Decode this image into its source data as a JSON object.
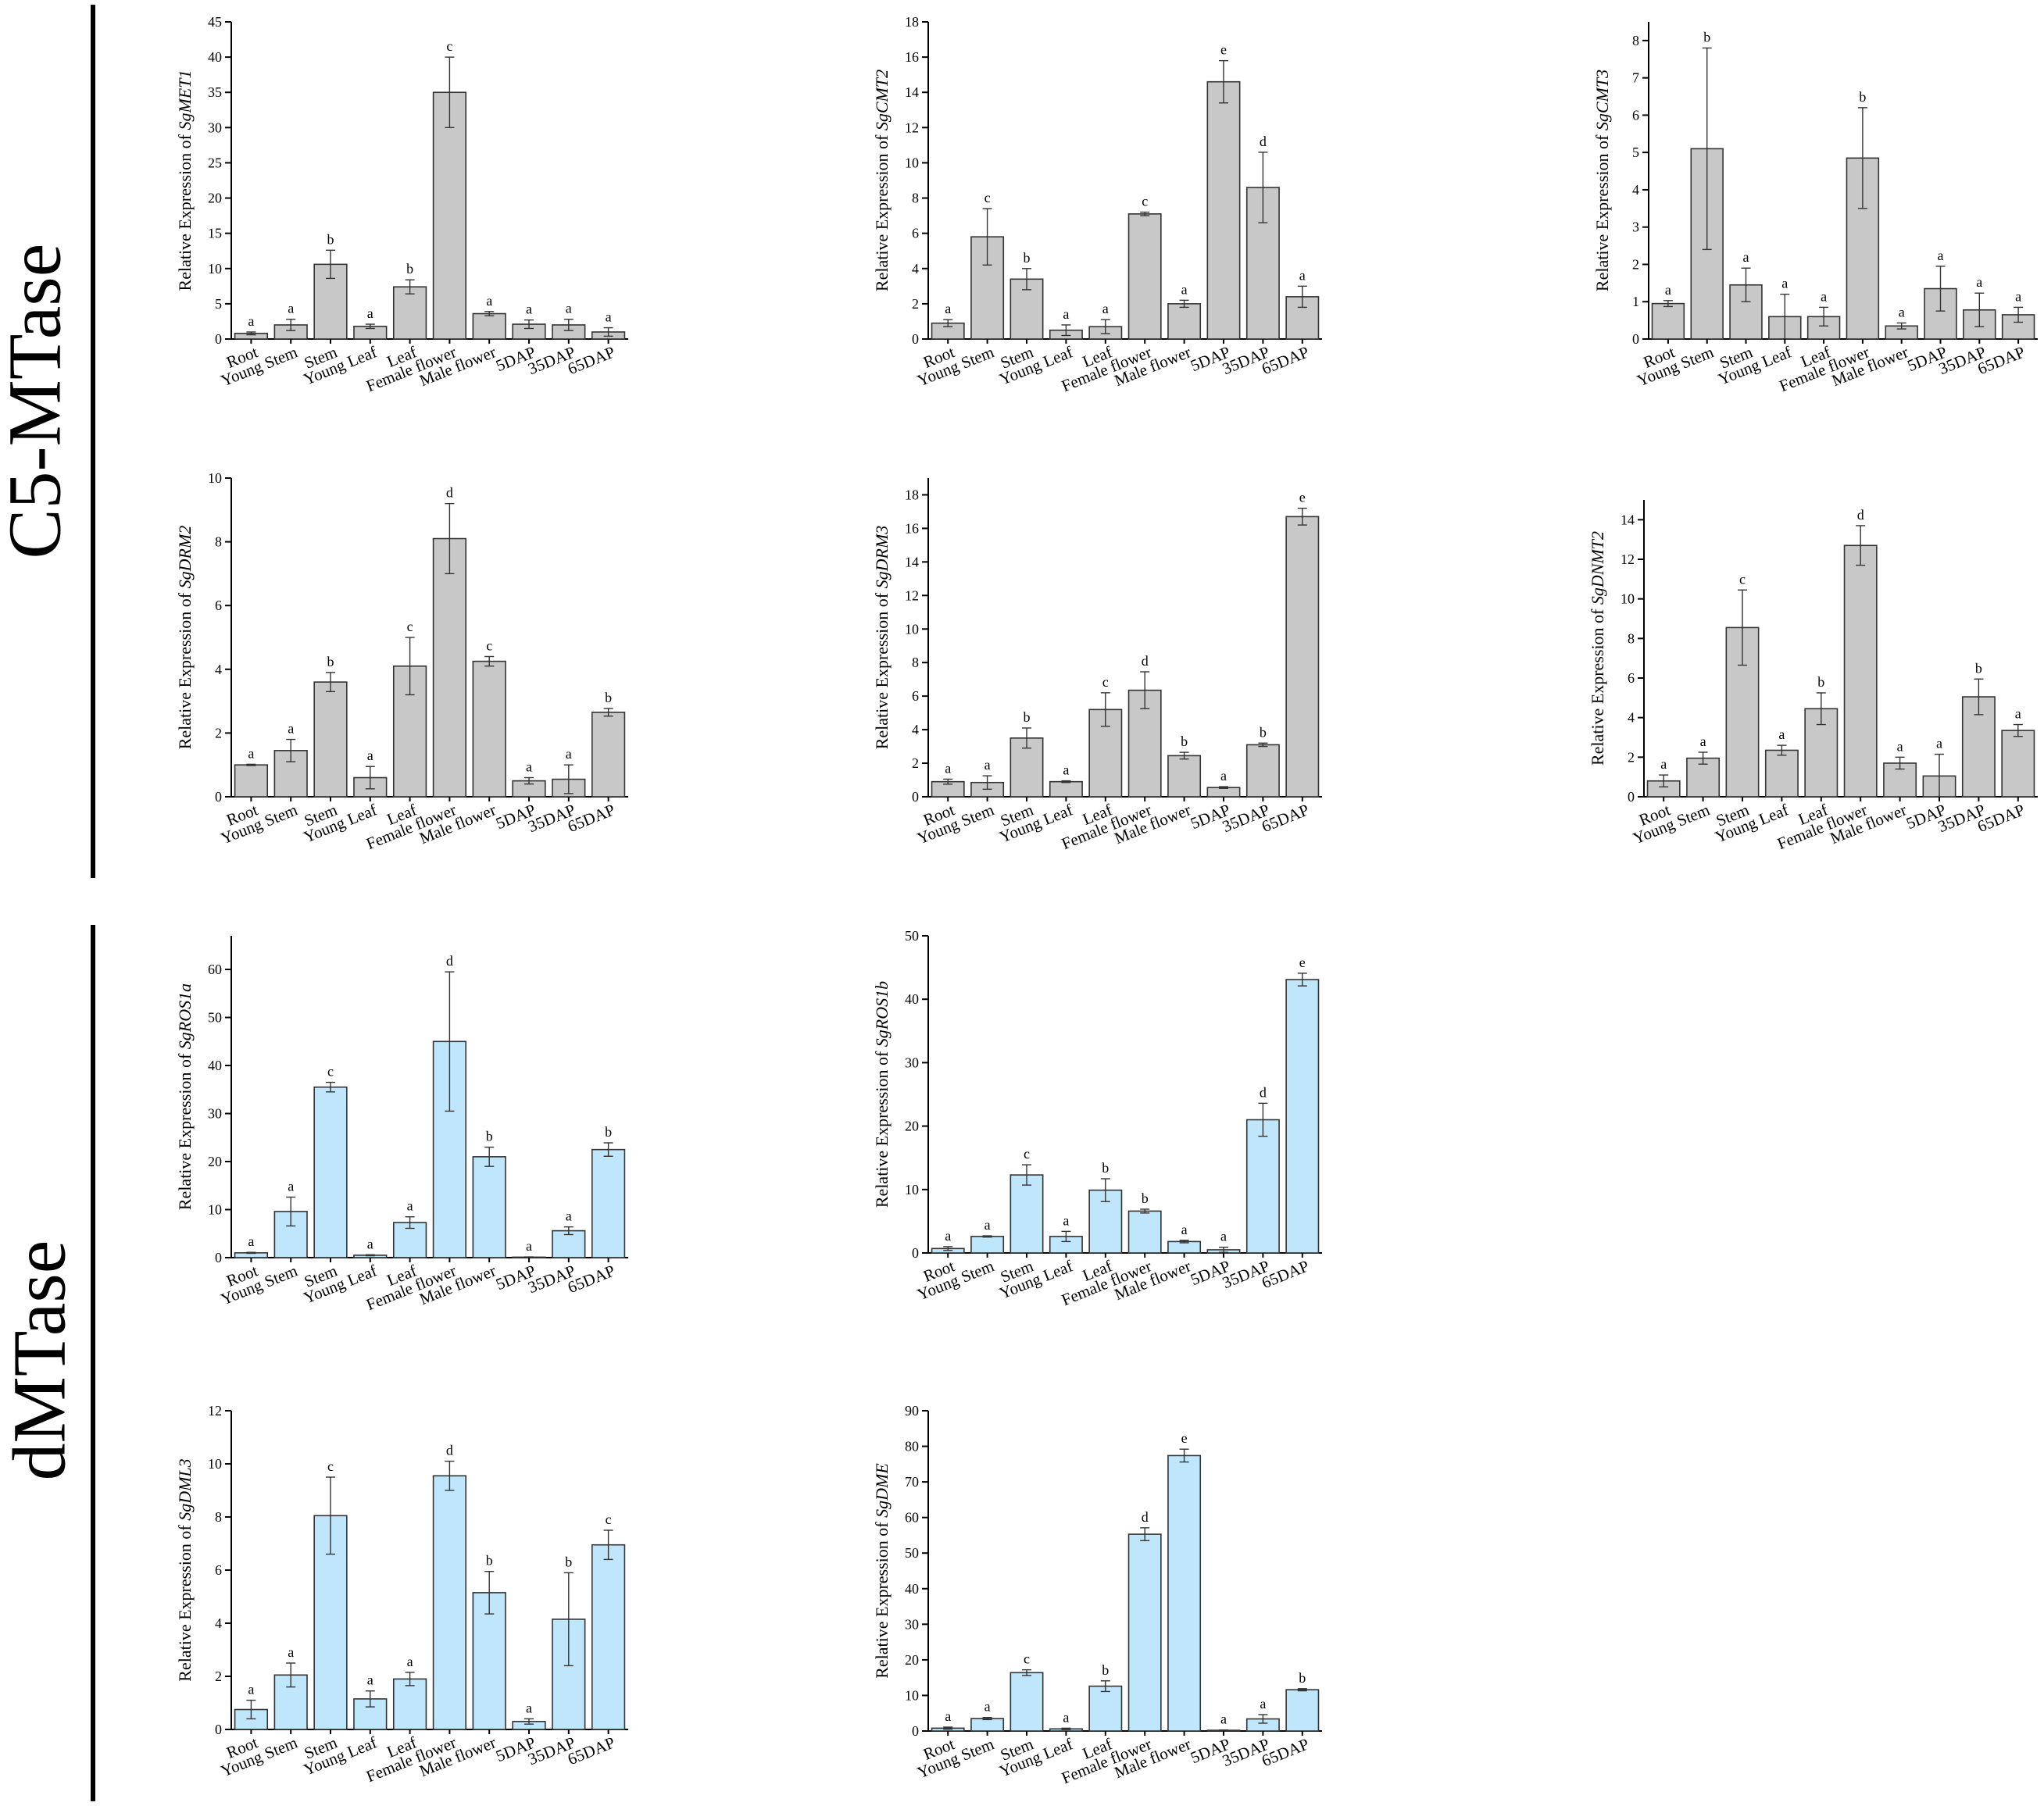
{
  "groups": [
    {
      "label": "C5-MTase"
    },
    {
      "label": "dMTase"
    }
  ],
  "chart_data": [
    {
      "type": "bar",
      "ylabel_prefix": "Relative Expression of ",
      "gene": "SgMET1",
      "categories": [
        "Root",
        "Young Stem",
        "Stem",
        "Young Leaf",
        "Leaf",
        "Female flower",
        "Male flower",
        "5DAP",
        "35DAP",
        "65DAP"
      ],
      "values": [
        0.8,
        2.0,
        10.6,
        1.8,
        7.4,
        35.0,
        3.6,
        2.1,
        2.0,
        1.0
      ],
      "errors": [
        0.2,
        0.8,
        2.0,
        0.3,
        1.0,
        5.0,
        0.3,
        0.6,
        0.8,
        0.6
      ],
      "letters": [
        "a",
        "a",
        "b",
        "a",
        "b",
        "c",
        "a",
        "a",
        "a",
        "a"
      ],
      "ylim": [
        0,
        45
      ],
      "yticks": [
        0,
        5,
        10,
        15,
        20,
        25,
        30,
        35,
        40,
        45
      ],
      "color": "#c8c8c8"
    },
    {
      "type": "bar",
      "ylabel_prefix": "Relative Expression of ",
      "gene": "SgCMT2",
      "categories": [
        "Root",
        "Young Stem",
        "Stem",
        "Young Leaf",
        "Leaf",
        "Female flower",
        "Male flower",
        "5DAP",
        "35DAP",
        "65DAP"
      ],
      "values": [
        0.9,
        5.8,
        3.4,
        0.5,
        0.7,
        7.1,
        2.0,
        14.6,
        8.6,
        2.4
      ],
      "errors": [
        0.2,
        1.6,
        0.6,
        0.3,
        0.4,
        0.1,
        0.2,
        1.2,
        2.0,
        0.6
      ],
      "letters": [
        "a",
        "c",
        "b",
        "a",
        "a",
        "c",
        "a",
        "e",
        "d",
        "a"
      ],
      "ylim": [
        0,
        18
      ],
      "yticks": [
        0,
        2,
        4,
        6,
        8,
        10,
        12,
        14,
        16,
        18
      ],
      "color": "#c8c8c8"
    },
    {
      "type": "bar",
      "ylabel_prefix": "Relative Expression of ",
      "gene": "SgCMT3",
      "categories": [
        "Root",
        "Young Stem",
        "Stem",
        "Young Leaf",
        "Leaf",
        "Female flower",
        "Male flower",
        "5DAP",
        "35DAP",
        "65DAP"
      ],
      "values": [
        0.95,
        5.1,
        1.45,
        0.6,
        0.6,
        4.85,
        0.35,
        1.35,
        0.78,
        0.65
      ],
      "errors": [
        0.08,
        2.7,
        0.45,
        0.6,
        0.25,
        1.35,
        0.08,
        0.6,
        0.45,
        0.2
      ],
      "letters": [
        "a",
        "b",
        "a",
        "a",
        "a",
        "b",
        "a",
        "a",
        "a",
        "a"
      ],
      "ylim": [
        0,
        8.5
      ],
      "yticks": [
        0,
        1,
        2,
        3,
        4,
        5,
        6,
        7,
        8
      ],
      "color": "#c8c8c8"
    },
    {
      "type": "bar",
      "ylabel_prefix": "Relative Expression of ",
      "gene": "SgDRM2",
      "categories": [
        "Root",
        "Young Stem",
        "Stem",
        "Young Leaf",
        "Leaf",
        "Female flower",
        "Male flower",
        "5DAP",
        "35DAP",
        "65DAP"
      ],
      "values": [
        1.0,
        1.45,
        3.6,
        0.6,
        4.1,
        8.1,
        4.25,
        0.5,
        0.55,
        2.65
      ],
      "errors": [
        0.02,
        0.35,
        0.3,
        0.35,
        0.9,
        1.1,
        0.15,
        0.1,
        0.45,
        0.12
      ],
      "letters": [
        "a",
        "a",
        "b",
        "a",
        "c",
        "d",
        "c",
        "a",
        "a",
        "b"
      ],
      "ylim": [
        0,
        10
      ],
      "yticks": [
        0,
        2,
        4,
        6,
        8,
        10
      ],
      "color": "#c8c8c8"
    },
    {
      "type": "bar",
      "ylabel_prefix": "Relative Expression of ",
      "gene": "SgDRM3",
      "categories": [
        "Root",
        "Young Stem",
        "Stem",
        "Young Leaf",
        "Leaf",
        "Female flower",
        "Male flower",
        "5DAP",
        "35DAP",
        "65DAP"
      ],
      "values": [
        0.9,
        0.85,
        3.5,
        0.9,
        5.2,
        6.35,
        2.45,
        0.55,
        3.1,
        16.7
      ],
      "errors": [
        0.15,
        0.4,
        0.6,
        0.05,
        1.0,
        1.1,
        0.2,
        0.05,
        0.1,
        0.5
      ],
      "letters": [
        "a",
        "a",
        "b",
        "a",
        "c",
        "d",
        "b",
        "a",
        "b",
        "e"
      ],
      "ylim": [
        0,
        19
      ],
      "yticks": [
        0,
        2,
        4,
        6,
        8,
        10,
        12,
        14,
        16,
        18
      ],
      "color": "#c8c8c8"
    },
    {
      "type": "bar",
      "ylabel_prefix": "Relative Expression of ",
      "gene": "SgDNMT2",
      "categories": [
        "Root",
        "Young Stem",
        "Stem",
        "Young Leaf",
        "Leaf",
        "Female flower",
        "Male flower",
        "5DAP",
        "35DAP",
        "65DAP"
      ],
      "values": [
        0.8,
        1.95,
        8.55,
        2.35,
        4.45,
        12.7,
        1.7,
        1.05,
        5.05,
        3.35
      ],
      "errors": [
        0.3,
        0.3,
        1.9,
        0.25,
        0.8,
        1.0,
        0.3,
        1.1,
        0.9,
        0.3
      ],
      "letters": [
        "a",
        "a",
        "c",
        "a",
        "b",
        "d",
        "a",
        "a",
        "b",
        "a"
      ],
      "ylim": [
        0,
        15
      ],
      "yticks": [
        0,
        2,
        4,
        6,
        8,
        10,
        12,
        14
      ],
      "color": "#c8c8c8"
    },
    {
      "type": "bar",
      "ylabel_prefix": "Relative Expression of ",
      "gene": "SgROS1a",
      "categories": [
        "Root",
        "Young Stem",
        "Stem",
        "Young Leaf",
        "Leaf",
        "Female flower",
        "Male flower",
        "5DAP",
        "35DAP",
        "65DAP"
      ],
      "values": [
        1.0,
        9.6,
        35.5,
        0.5,
        7.3,
        45.0,
        21.0,
        0.1,
        5.6,
        22.5
      ],
      "errors": [
        0.1,
        3.0,
        1.0,
        0.1,
        1.2,
        14.5,
        2.0,
        0.05,
        0.8,
        1.4
      ],
      "letters": [
        "a",
        "a",
        "c",
        "a",
        "a",
        "d",
        "b",
        "a",
        "a",
        "b"
      ],
      "ylim": [
        0,
        67
      ],
      "yticks": [
        0,
        10,
        20,
        30,
        40,
        50,
        60
      ],
      "color": "#bfe6fb"
    },
    {
      "type": "bar",
      "ylabel_prefix": "Relative Expression of ",
      "gene": "SgROS1b",
      "categories": [
        "Root",
        "Young Stem",
        "Stem",
        "Young Leaf",
        "Leaf",
        "Female flower",
        "Male flower",
        "5DAP",
        "35DAP",
        "65DAP"
      ],
      "values": [
        0.7,
        2.6,
        12.3,
        2.6,
        9.9,
        6.6,
        1.8,
        0.5,
        21.0,
        43.1
      ],
      "errors": [
        0.3,
        0.1,
        1.6,
        0.8,
        1.8,
        0.3,
        0.2,
        0.4,
        2.6,
        1.0
      ],
      "letters": [
        "a",
        "a",
        "c",
        "a",
        "b",
        "b",
        "a",
        "a",
        "d",
        "e"
      ],
      "ylim": [
        0,
        50
      ],
      "yticks": [
        0,
        10,
        20,
        30,
        40,
        50
      ],
      "color": "#bfe6fb"
    },
    {
      "type": "bar",
      "ylabel_prefix": "Relative Expression of ",
      "gene": "SgDML3",
      "categories": [
        "Root",
        "Young Stem",
        "Stem",
        "Young Leaf",
        "Leaf",
        "Female flower",
        "Male flower",
        "5DAP",
        "35DAP",
        "65DAP"
      ],
      "values": [
        0.75,
        2.05,
        8.05,
        1.15,
        1.9,
        9.55,
        5.15,
        0.3,
        4.15,
        6.95
      ],
      "errors": [
        0.35,
        0.45,
        1.45,
        0.3,
        0.25,
        0.55,
        0.8,
        0.1,
        1.75,
        0.55
      ],
      "letters": [
        "a",
        "a",
        "c",
        "a",
        "a",
        "d",
        "b",
        "a",
        "b",
        "c"
      ],
      "ylim": [
        0,
        12
      ],
      "yticks": [
        0,
        2,
        4,
        6,
        8,
        10,
        12
      ],
      "color": "#bfe6fb"
    },
    {
      "type": "bar",
      "ylabel_prefix": "Relative Expression of ",
      "gene": "SgDME",
      "categories": [
        "Root",
        "Young Stem",
        "Stem",
        "Young Leaf",
        "Leaf",
        "Female flower",
        "Male flower",
        "5DAP",
        "35DAP",
        "65DAP"
      ],
      "values": [
        0.8,
        3.5,
        16.4,
        0.6,
        12.6,
        55.3,
        77.4,
        0.2,
        3.4,
        11.6
      ],
      "errors": [
        0.3,
        0.3,
        0.8,
        0.2,
        1.5,
        1.8,
        1.8,
        0.1,
        1.2,
        0.3
      ],
      "letters": [
        "a",
        "a",
        "c",
        "a",
        "b",
        "d",
        "e",
        "a",
        "a",
        "b"
      ],
      "ylim": [
        0,
        90
      ],
      "yticks": [
        0,
        10,
        20,
        30,
        40,
        50,
        60,
        70,
        80,
        90
      ],
      "color": "#bfe6fb"
    }
  ]
}
